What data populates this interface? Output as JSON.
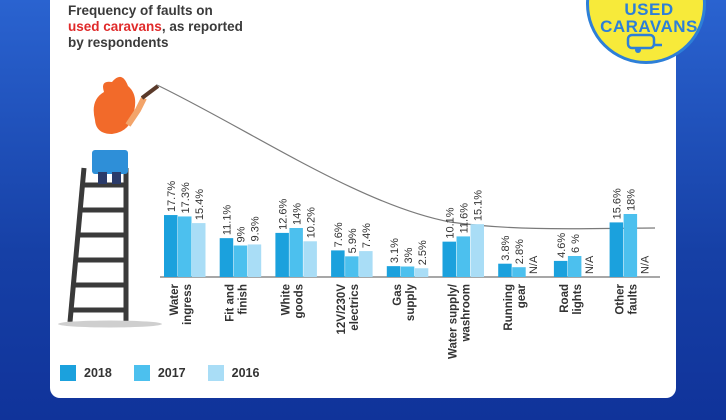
{
  "title": {
    "line1": "Frequency of faults on",
    "accent": "used caravans",
    "rest": ", as reported",
    "line3": "by respondents"
  },
  "badge": {
    "line1": "USED",
    "line2": "CARAVANS",
    "icon": "caravan-icon"
  },
  "colors": {
    "2018": "#1ba1dd",
    "2017": "#4cc0ee",
    "2016": "#a9ddf6",
    "background": "#1540a8",
    "card": "#ffffff",
    "accent": "#e02a2a"
  },
  "legend": [
    "2018",
    "2017",
    "2016"
  ],
  "chart_data": {
    "type": "bar",
    "categories": [
      [
        "Water",
        "ingress"
      ],
      [
        "Fit and",
        "finish"
      ],
      [
        "White",
        "goods"
      ],
      [
        "12V/230V",
        "electrics"
      ],
      [
        "Gas",
        "supply"
      ],
      [
        "Water supply/",
        "washroom"
      ],
      [
        "Running",
        "gear"
      ],
      [
        "Road",
        "lights"
      ],
      [
        "Other",
        "faults"
      ]
    ],
    "series": [
      {
        "name": "2018",
        "values": [
          17.7,
          11.1,
          12.6,
          7.6,
          3.1,
          10.1,
          3.8,
          4.6,
          15.6
        ]
      },
      {
        "name": "2017",
        "values": [
          17.3,
          9,
          14,
          5.9,
          3,
          11.6,
          2.8,
          6,
          18
        ]
      },
      {
        "name": "2016",
        "values": [
          15.4,
          9.3,
          10.2,
          7.4,
          2.5,
          15.1,
          null,
          null,
          null
        ]
      }
    ],
    "value_labels": [
      [
        "17.7%",
        "17.3%",
        "15.4%"
      ],
      [
        "11.1%",
        "9%",
        "9.3%"
      ],
      [
        "12.6%",
        "14%",
        "10.2%"
      ],
      [
        "7.6%",
        "5.9%",
        "7.4%"
      ],
      [
        "3.1%",
        "3%",
        "2.5%"
      ],
      [
        "10.1%",
        "11.6%",
        "15.1%"
      ],
      [
        "3.8%",
        "2.8%",
        "N/A"
      ],
      [
        "4.6%",
        "6 %",
        "N/A"
      ],
      [
        "15.6%",
        "18%",
        "N/A"
      ]
    ],
    "ylim": [
      0,
      20
    ],
    "grid": false,
    "legend_position": "bottom-left"
  }
}
